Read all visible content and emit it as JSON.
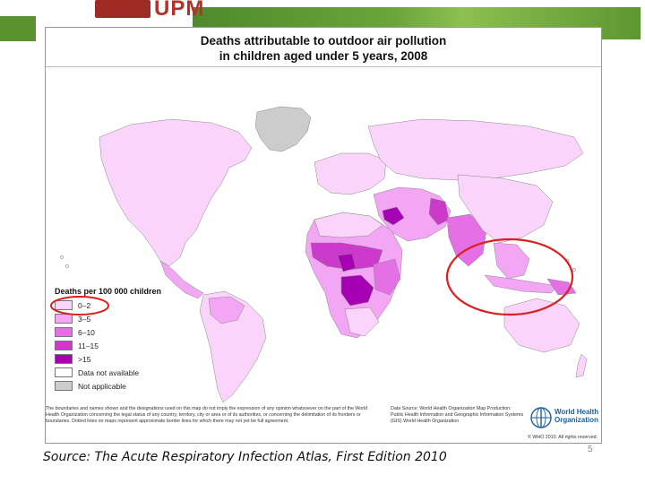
{
  "banner": {
    "logo_text": "UPM"
  },
  "map": {
    "title_line1": "Deaths attributable to outdoor air pollution",
    "title_line2": "in children aged under 5 years, 2008",
    "legend": {
      "title": "Deaths per 100 000 children",
      "items": [
        {
          "label": "0–2",
          "color": "#fbd4fb"
        },
        {
          "label": "3–5",
          "color": "#f3a6f3"
        },
        {
          "label": "6–10",
          "color": "#e56fe5"
        },
        {
          "label": "11–15",
          "color": "#cc3acc"
        },
        {
          "label": ">15",
          "color": "#a600b4"
        },
        {
          "label": "Data not available",
          "color": "#ffffff"
        },
        {
          "label": "Not applicable",
          "color": "#cccccc"
        }
      ]
    },
    "disclaimer": "The boundaries and names shown and the designations used on this map do not imply the expression of any opinion whatsoever on the part of the World Health Organization concerning the legal status of any country, territory, city or area or of its authorities, or concerning the delimitation of its frontiers or boundaries. Dotted lines on maps represent approximate border lines for which there may not yet be full agreement.",
    "data_source": "Data Source: World Health Organization Map Production: Public Health Information and Geographic Information Systems (GIS) World Health Organization",
    "who_name_line1": "World Health",
    "who_name_line2": "Organization",
    "copyright": "© WHO 2010. All rights reserved."
  },
  "source_caption": "Source: The Acute Respiratory Infection Atlas, First Edition 2010",
  "page_number": "5",
  "annotations": {
    "circle_color": "#d9201f"
  }
}
